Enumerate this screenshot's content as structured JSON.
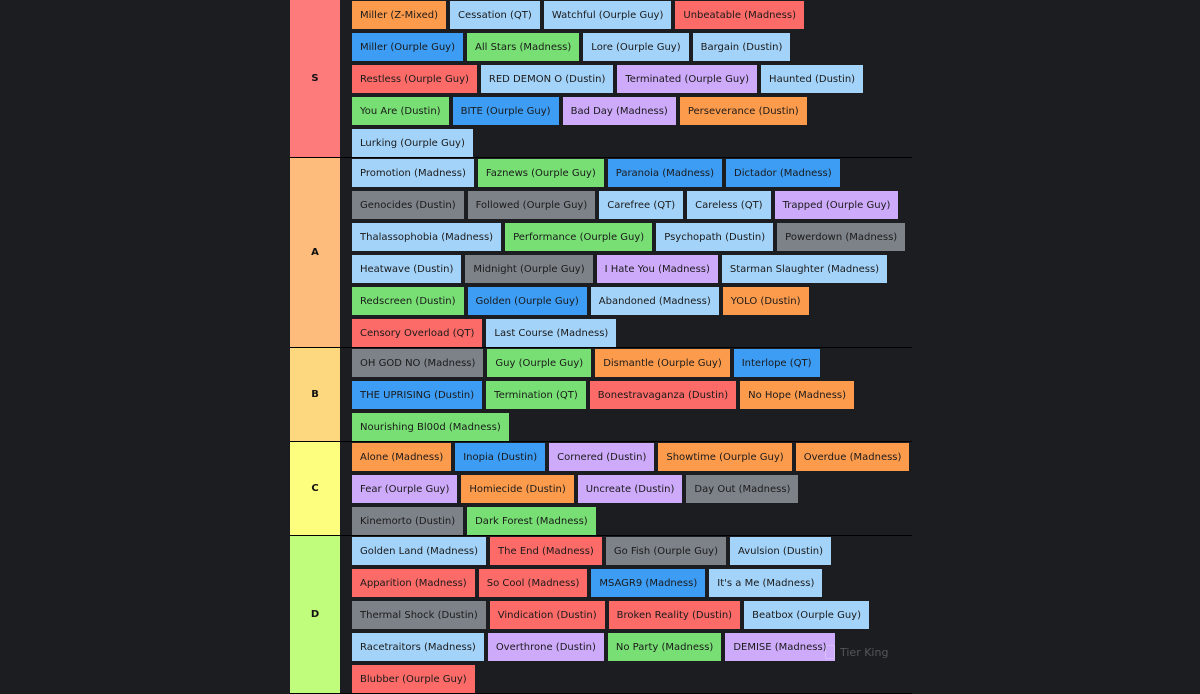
{
  "colors": {
    "orange": "#fd9b4d",
    "lightblue": "#a4d3f9",
    "red": "#fc6b68",
    "blue": "#3d9cf4",
    "green": "#77df73",
    "purple": "#ceaafa",
    "gray": "#7d8289",
    "tier_S": "#fd7b7b",
    "tier_A": "#fdbb7c",
    "tier_B": "#fed87e",
    "tier_C": "#fdfe7e",
    "tier_D": "#c0fd7c"
  },
  "tiers": [
    {
      "label": "S",
      "color": "tier_S",
      "items": [
        {
          "text": "Miller (Z-Mixed)",
          "color": "orange"
        },
        {
          "text": "Cessation (QT)",
          "color": "lightblue"
        },
        {
          "text": "Watchful (Ourple Guy)",
          "color": "lightblue"
        },
        {
          "text": "Unbeatable (Madness)",
          "color": "red"
        },
        {
          "text": "Miller (Ourple Guy)",
          "color": "blue"
        },
        {
          "text": "All Stars (Madness)",
          "color": "green"
        },
        {
          "text": "Lore (Ourple Guy)",
          "color": "lightblue"
        },
        {
          "text": "Bargain (Dustin)",
          "color": "lightblue"
        },
        {
          "text": "Restless (Ourple Guy)",
          "color": "red"
        },
        {
          "text": "RED DEMON O (Dustin)",
          "color": "lightblue"
        },
        {
          "text": "Terminated (Ourple Guy)",
          "color": "purple"
        },
        {
          "text": "Haunted (Dustin)",
          "color": "lightblue"
        },
        {
          "text": "You Are (Dustin)",
          "color": "green"
        },
        {
          "text": "BITE (Ourple Guy)",
          "color": "blue"
        },
        {
          "text": "Bad Day (Madness)",
          "color": "purple"
        },
        {
          "text": "Perseverance (Dustin)",
          "color": "orange"
        },
        {
          "text": "Lurking (Ourple Guy)",
          "color": "lightblue"
        }
      ]
    },
    {
      "label": "A",
      "color": "tier_A",
      "items": [
        {
          "text": "Promotion (Madness)",
          "color": "lightblue"
        },
        {
          "text": "Faznews (Ourple Guy)",
          "color": "green"
        },
        {
          "text": "Paranoia (Madness)",
          "color": "blue"
        },
        {
          "text": "Dictador (Madness)",
          "color": "blue"
        },
        {
          "text": "Genocides (Dustin)",
          "color": "gray"
        },
        {
          "text": "Followed (Ourple Guy)",
          "color": "gray"
        },
        {
          "text": "Carefree (QT)",
          "color": "lightblue"
        },
        {
          "text": "Careless (QT)",
          "color": "lightblue"
        },
        {
          "text": "Trapped (Ourple Guy)",
          "color": "purple"
        },
        {
          "text": "Thalassophobia (Madness)",
          "color": "lightblue"
        },
        {
          "text": "Performance (Ourple Guy)",
          "color": "green"
        },
        {
          "text": "Psychopath (Dustin)",
          "color": "lightblue"
        },
        {
          "text": "Powerdown (Madness)",
          "color": "gray"
        },
        {
          "text": "Heatwave (Dustin)",
          "color": "lightblue"
        },
        {
          "text": "Midnight (Ourple Guy)",
          "color": "gray"
        },
        {
          "text": "I Hate You (Madness)",
          "color": "purple"
        },
        {
          "text": "Starman Slaughter (Madness)",
          "color": "lightblue"
        },
        {
          "text": "Redscreen (Dustin)",
          "color": "green"
        },
        {
          "text": "Golden (Ourple Guy)",
          "color": "blue"
        },
        {
          "text": "Abandoned (Madness)",
          "color": "lightblue"
        },
        {
          "text": "YOLO (Dustin)",
          "color": "orange"
        },
        {
          "text": "Censory Overload (QT)",
          "color": "red"
        },
        {
          "text": "Last Course (Madness)",
          "color": "lightblue"
        }
      ]
    },
    {
      "label": "B",
      "color": "tier_B",
      "items": [
        {
          "text": "OH GOD NO (Madness)",
          "color": "gray"
        },
        {
          "text": "Guy (Ourple Guy)",
          "color": "green"
        },
        {
          "text": "Dismantle (Ourple Guy)",
          "color": "orange"
        },
        {
          "text": "Interlope (QT)",
          "color": "blue"
        },
        {
          "text": "THE UPRISING (Dustin)",
          "color": "blue"
        },
        {
          "text": "Termination (QT)",
          "color": "green"
        },
        {
          "text": "Bonestravaganza (Dustin)",
          "color": "red"
        },
        {
          "text": "No Hope (Madness)",
          "color": "orange"
        },
        {
          "text": "Nourishing Bl00d (Madness)",
          "color": "green"
        }
      ]
    },
    {
      "label": "C",
      "color": "tier_C",
      "items": [
        {
          "text": "Alone (Madness)",
          "color": "orange"
        },
        {
          "text": "Inopia (Dustin)",
          "color": "blue"
        },
        {
          "text": "Cornered (Dustin)",
          "color": "purple"
        },
        {
          "text": "Showtime (Ourple Guy)",
          "color": "orange"
        },
        {
          "text": "Overdue (Madness)",
          "color": "orange"
        },
        {
          "text": "Fear (Ourple Guy)",
          "color": "purple"
        },
        {
          "text": "Homiecide (Dustin)",
          "color": "orange"
        },
        {
          "text": "Uncreate (Dustin)",
          "color": "purple"
        },
        {
          "text": "Day Out (Madness)",
          "color": "gray"
        },
        {
          "text": "Kinemorto (Dustin)",
          "color": "gray"
        },
        {
          "text": "Dark Forest (Madness)",
          "color": "green"
        }
      ]
    },
    {
      "label": "D",
      "color": "tier_D",
      "items": [
        {
          "text": "Golden Land (Madness)",
          "color": "lightblue"
        },
        {
          "text": "The End (Madness)",
          "color": "red"
        },
        {
          "text": "Go Fish (Ourple Guy)",
          "color": "gray"
        },
        {
          "text": "Avulsion (Dustin)",
          "color": "lightblue"
        },
        {
          "text": "Apparition (Madness)",
          "color": "red"
        },
        {
          "text": "So Cool (Madness)",
          "color": "red"
        },
        {
          "text": "MSAGR9 (Madness)",
          "color": "blue"
        },
        {
          "text": "It's a Me (Madness)",
          "color": "lightblue"
        },
        {
          "text": "Thermal Shock (Dustin)",
          "color": "gray"
        },
        {
          "text": "Vindication (Dustin)",
          "color": "red"
        },
        {
          "text": "Broken Reality (Dustin)",
          "color": "red"
        },
        {
          "text": "Beatbox (Ourple Guy)",
          "color": "lightblue"
        },
        {
          "text": "Racetraitors (Madness)",
          "color": "lightblue"
        },
        {
          "text": "Overthrone (Dustin)",
          "color": "purple"
        },
        {
          "text": "No Party (Madness)",
          "color": "green"
        },
        {
          "text": "DEMISE (Madness)",
          "color": "purple"
        },
        {
          "text": "Blubber (Ourple Guy)",
          "color": "red"
        }
      ]
    }
  ],
  "watermark": {
    "text": "Tier King",
    "icon": "tier-king-logo-icon"
  }
}
